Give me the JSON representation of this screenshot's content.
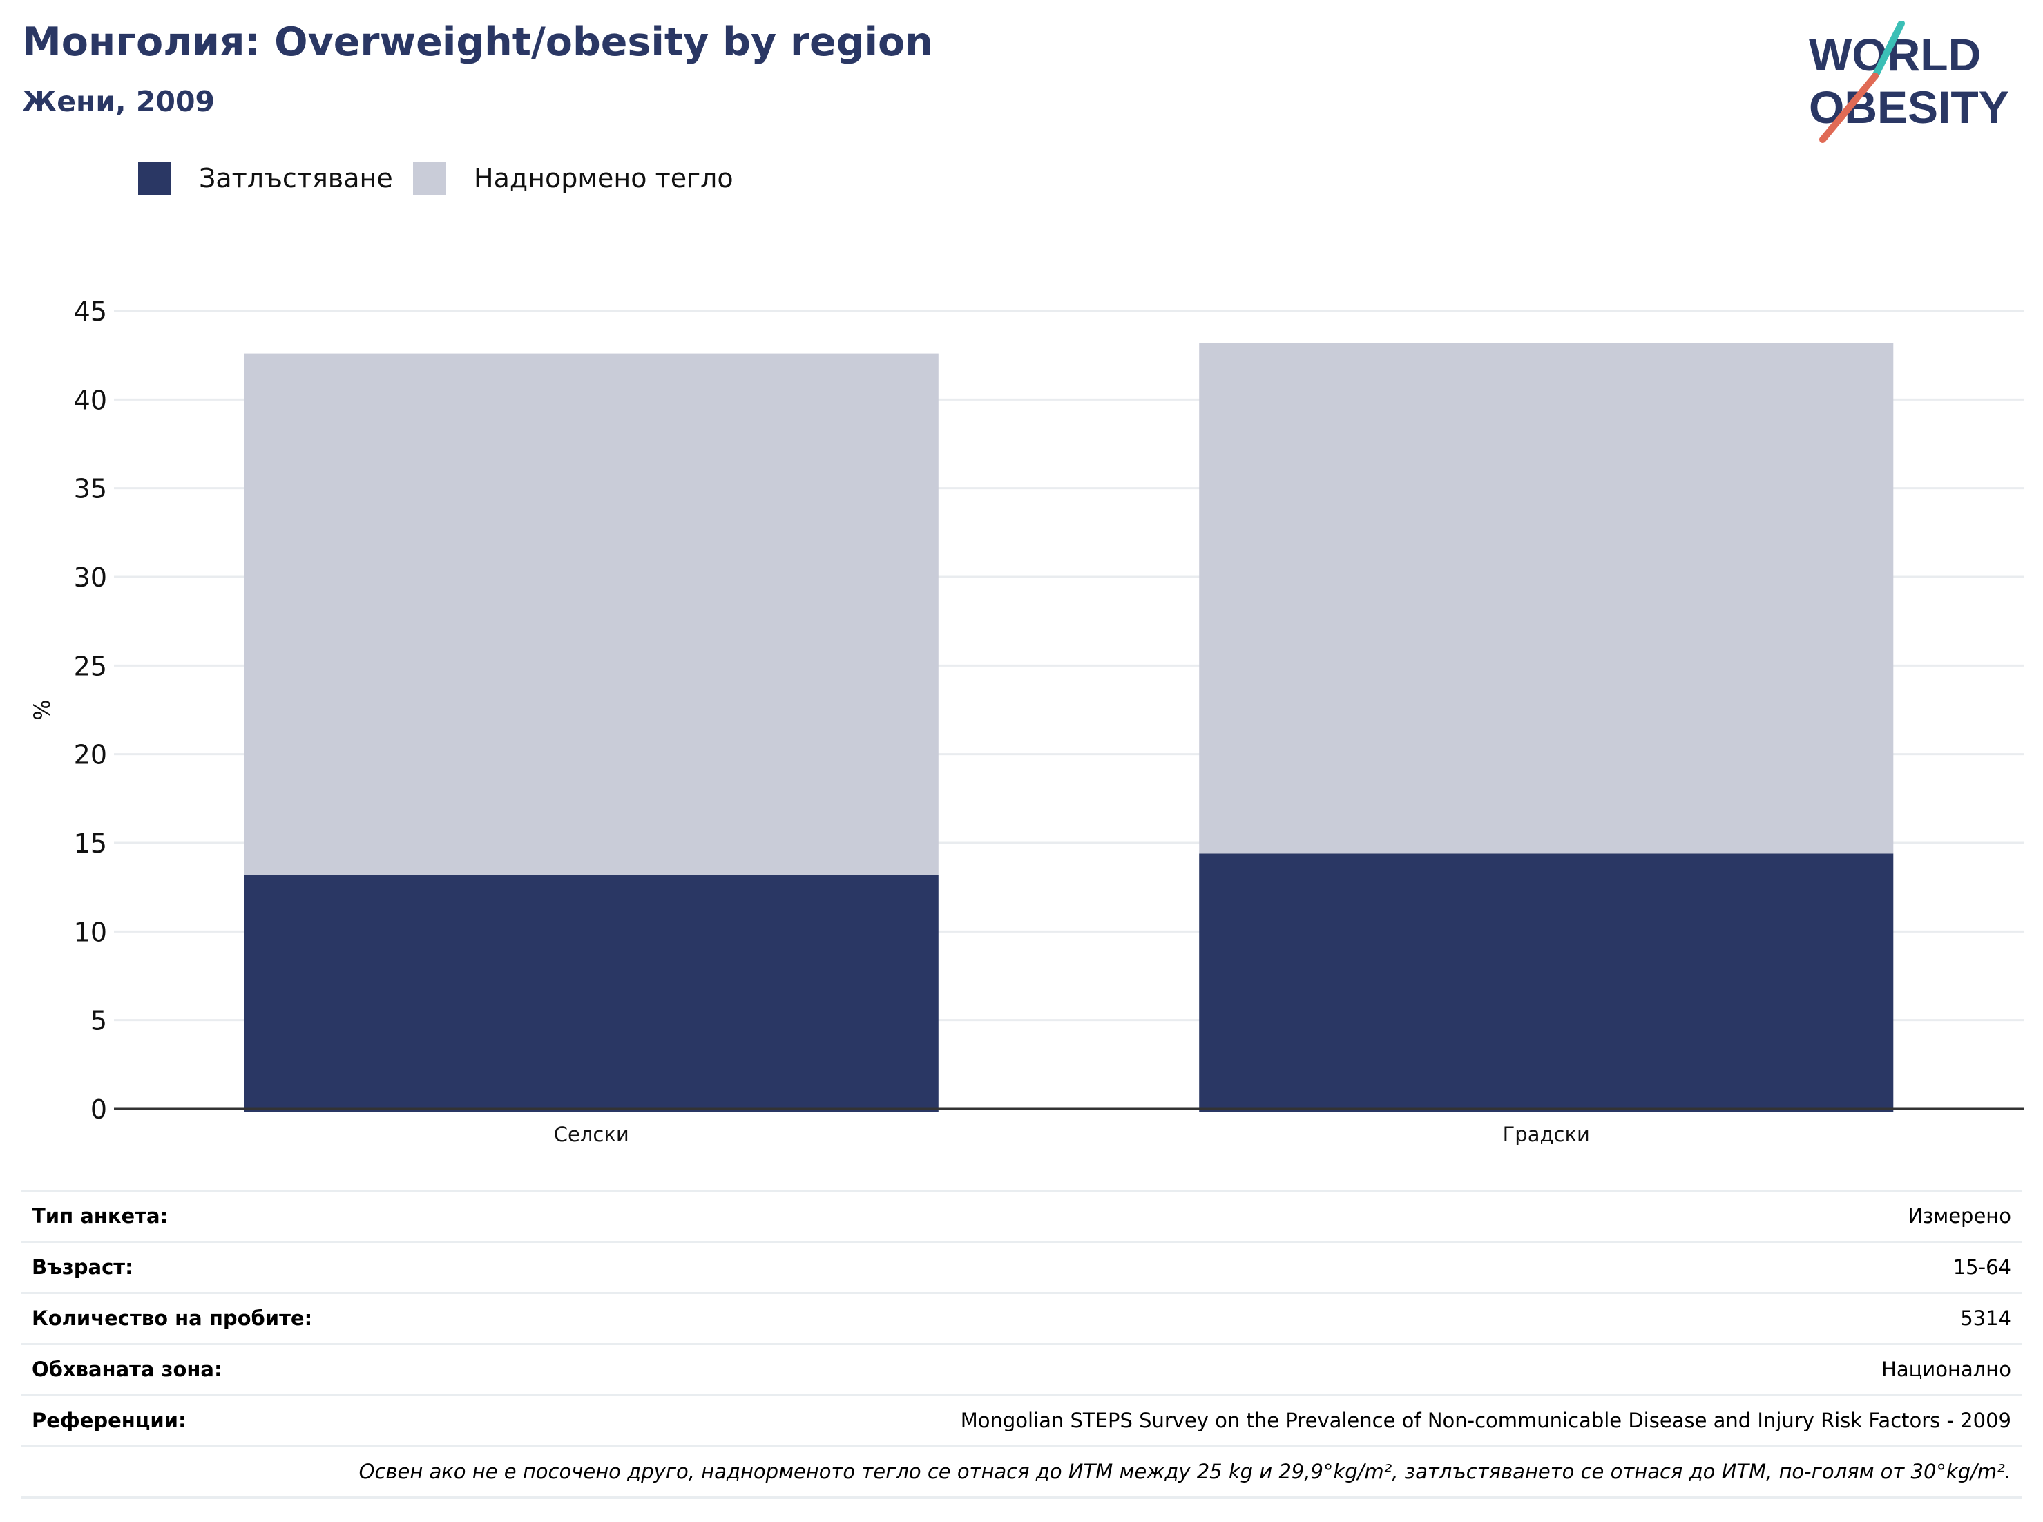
{
  "header": {
    "title": "Монголия: Overweight/obesity by region",
    "subtitle": "Жени, 2009"
  },
  "logo": {
    "line1": "WORLD",
    "line2": "OBESITY",
    "text_color": "#2a3764",
    "accent_teal": "#3bbfb6",
    "accent_coral": "#e06a55"
  },
  "legend": [
    {
      "label": "Затлъстяване",
      "color": "#2a3764"
    },
    {
      "label": "Наднормено тегло",
      "color": "#c9ccd8"
    }
  ],
  "chart_data": {
    "type": "bar",
    "stacked": true,
    "categories": [
      "Селски",
      "Градски"
    ],
    "series": [
      {
        "name": "Затлъстяване",
        "values": [
          13.2,
          14.4
        ],
        "color": "#2a3764"
      },
      {
        "name": "Наднормено тегло",
        "values": [
          29.4,
          28.8
        ],
        "color": "#c9ccd8"
      }
    ],
    "ylabel": "%",
    "ylim": [
      0,
      45
    ],
    "yticks": [
      0,
      5,
      10,
      15,
      20,
      25,
      30,
      35,
      40,
      45
    ],
    "grid": true,
    "legend_position": "top-left"
  },
  "meta": {
    "rows": [
      {
        "key": "Тип анкета:",
        "value": "Измерено"
      },
      {
        "key": "Възраст:",
        "value": "15-64"
      },
      {
        "key": "Количество на пробите:",
        "value": "5314"
      },
      {
        "key": "Обхваната зона:",
        "value": "Национално"
      },
      {
        "key": "Референции:",
        "value": "Mongolian STEPS Survey on the Prevalence of Non-communicable Disease and Injury Risk Factors - 2009"
      }
    ],
    "note": "Освен ако не е посочено друго, наднорменото тегло се отнася до ИТМ между 25 kg и 29,9°kg/m², затлъстяването се отнася до ИТМ, по-голям от 30°kg/m²."
  }
}
